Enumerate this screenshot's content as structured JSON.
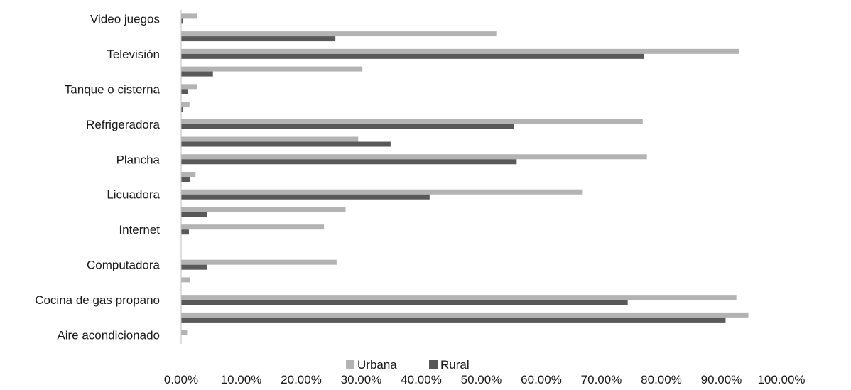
{
  "chart_data": {
    "type": "bar",
    "orientation": "horizontal",
    "categories": [
      "Aire acondicionado",
      "",
      "Cocina de gas propano",
      "",
      "Computadora",
      "",
      "Internet",
      "",
      "Licuadora",
      "",
      "Plancha",
      "",
      "Refrigeradora",
      "",
      "Tanque o cisterna",
      "",
      "Televisión",
      "",
      "Video juegos"
    ],
    "series": [
      {
        "name": "Urbana",
        "color": "#b3b3b3",
        "values": [
          1.0,
          94.5,
          92.5,
          1.5,
          25.9,
          0.0,
          23.8,
          27.4,
          66.9,
          2.4,
          77.6,
          29.5,
          76.9,
          1.4,
          2.6,
          30.2,
          93.0,
          52.5,
          2.7
        ]
      },
      {
        "name": "Rural",
        "color": "#595959",
        "values": [
          0.0,
          90.7,
          74.4,
          0.0,
          4.3,
          0.0,
          1.3,
          4.3,
          41.4,
          1.5,
          55.9,
          34.9,
          55.4,
          0.3,
          1.1,
          5.3,
          77.1,
          25.7,
          0.3
        ]
      }
    ],
    "xlim": [
      0,
      100
    ],
    "x_ticks": [
      "0.00%",
      "10.00%",
      "20.00%",
      "30.00%",
      "40.00%",
      "50.00%",
      "60.00%",
      "70.00%",
      "80.00%",
      "90.00%",
      "100.00%"
    ],
    "legend": [
      "Urbana",
      "Rural"
    ],
    "legend_position": "bottom",
    "grid": false
  }
}
